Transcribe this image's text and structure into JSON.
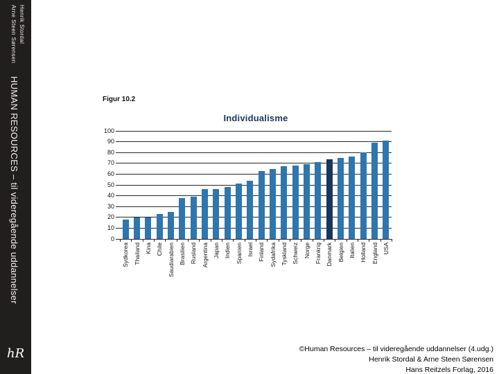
{
  "sidebar": {
    "bg_color": "#211e1e",
    "authors": [
      "Henrik Stordal",
      "Arne Steen Sørensen"
    ],
    "series_title": "HUMAN RESOURCES – til videregående uddannelser",
    "logo_text": "hR"
  },
  "figure_label": "Figur 10.2",
  "chart_data": {
    "type": "bar",
    "title": "Individualisme",
    "title_color": "#1f3864",
    "categories": [
      "Sydkorea",
      "Thailand",
      "Kina",
      "Chile",
      "Saudiarabien",
      "Brasilien",
      "Rusland",
      "Argentina",
      "Japan",
      "Indien",
      "Spanien",
      "Israel",
      "Finland",
      "Sydafrika",
      "Tyskland",
      "Schweiz",
      "Norge",
      "Frankrig",
      "Danmark",
      "Belgien",
      "Italien",
      "Holland",
      "England",
      "USA"
    ],
    "values": [
      18,
      20,
      20,
      23,
      25,
      38,
      39,
      46,
      46,
      48,
      51,
      54,
      63,
      65,
      67,
      68,
      69,
      71,
      74,
      75,
      76,
      80,
      89,
      91
    ],
    "bar_color": "#2d76ae",
    "highlight_category": "Danmark",
    "highlight_color": "#17365d",
    "ylim": [
      0,
      100
    ],
    "yticks": [
      0,
      10,
      20,
      30,
      40,
      50,
      60,
      70,
      80,
      90,
      100
    ],
    "grid": true,
    "legend": false,
    "xlabel": "",
    "ylabel": ""
  },
  "footer": {
    "lines": [
      "©Human Resources – til videregående uddannelser (4.udg.)",
      "Henrik Stordal & Arne Steen Sørensen",
      "Hans Reitzels Forlag, 2016"
    ]
  }
}
